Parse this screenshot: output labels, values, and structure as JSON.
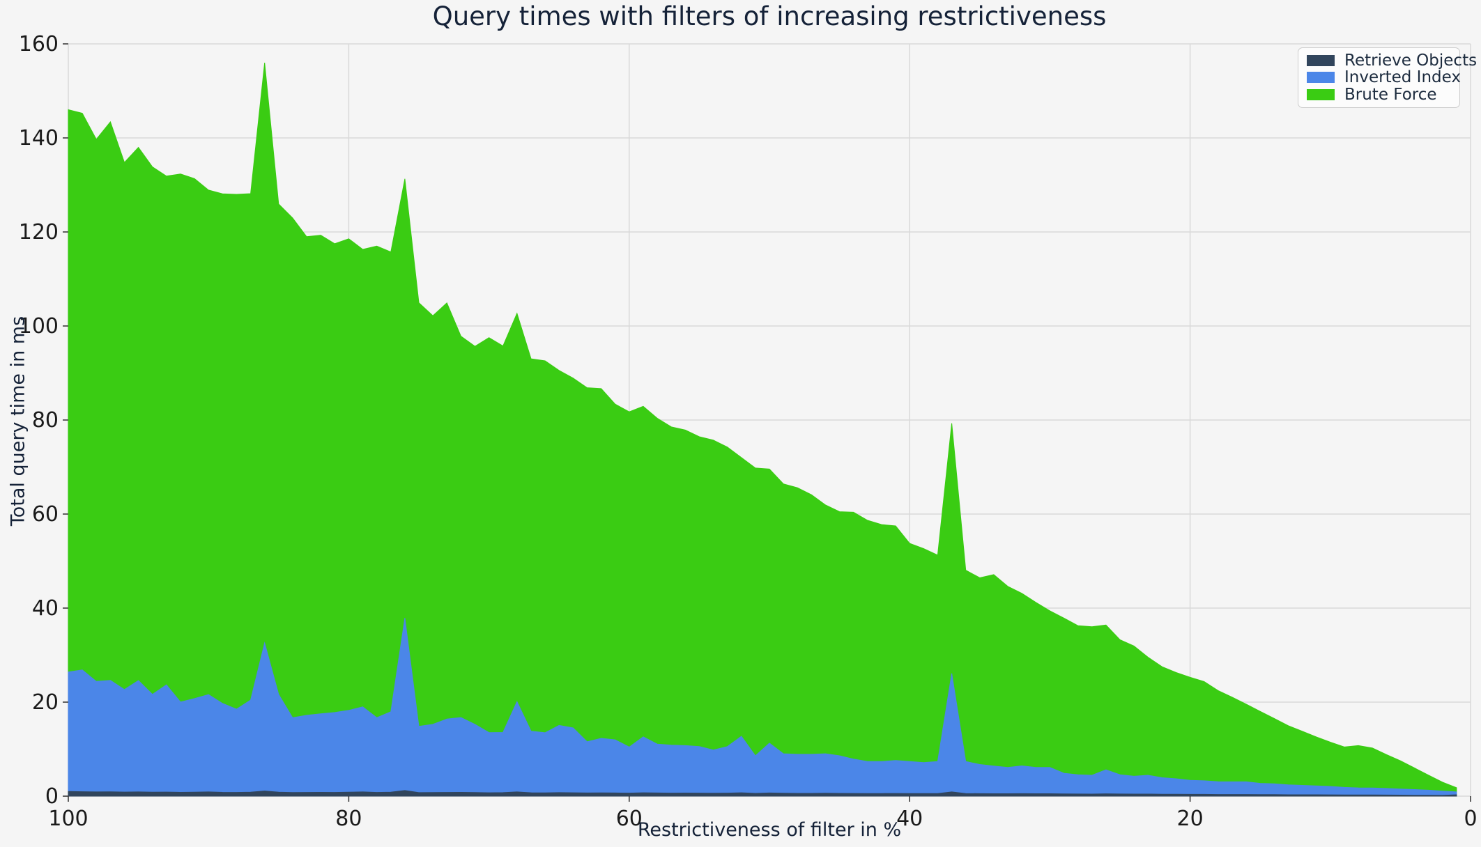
{
  "title": "Query times with filters of increasing restrictiveness",
  "x_axis": {
    "label": "Restrictiveness of filter in %",
    "tick_labels": [
      "100",
      "80",
      "60",
      "40",
      "20",
      "0"
    ],
    "tick_values": [
      100,
      80,
      60,
      40,
      20,
      0
    ]
  },
  "y_axis": {
    "label": "Total query time in ms",
    "tick_labels": [
      "0",
      "20",
      "40",
      "60",
      "80",
      "100",
      "120",
      "140",
      "160"
    ],
    "tick_values": [
      0,
      20,
      40,
      60,
      80,
      100,
      120,
      140,
      160
    ]
  },
  "legend": {
    "entries": [
      {
        "label": "Retrieve Objects",
        "color": "#31455c"
      },
      {
        "label": "Inverted Index",
        "color": "#4b86e8"
      },
      {
        "label": "Brute Force",
        "color": "#3acc13"
      }
    ]
  },
  "colors": {
    "background": "#f5f5f5",
    "grid": "#d9d9d9",
    "tick_mark": "#3a3a3a",
    "tick_text": "#1a1a1a",
    "label_text": "#152238",
    "legend_background": "#fcfcfc",
    "legend_border": "#cccccc"
  },
  "chart_data": {
    "type": "area",
    "stacked": true,
    "title": "Query times with filters of increasing restrictiveness",
    "xlabel": "Restrictiveness of filter in %",
    "ylabel": "Total query time in ms",
    "xlim": [
      100,
      0
    ],
    "ylim": [
      0,
      160
    ],
    "x_reversed": true,
    "grid": true,
    "legend_position": "upper right",
    "x": [
      100,
      99,
      98,
      97,
      96,
      95,
      94,
      93,
      92,
      91,
      90,
      89,
      88,
      87,
      86,
      85,
      84,
      83,
      82,
      81,
      80,
      79,
      78,
      77,
      76,
      75,
      74,
      73,
      72,
      71,
      70,
      69,
      68,
      67,
      66,
      65,
      64,
      63,
      62,
      61,
      60,
      59,
      58,
      57,
      56,
      55,
      54,
      53,
      52,
      51,
      50,
      49,
      48,
      47,
      46,
      45,
      44,
      43,
      42,
      41,
      40,
      39,
      38,
      37,
      36,
      35,
      34,
      33,
      32,
      31,
      30,
      29,
      28,
      27,
      26,
      25,
      24,
      23,
      22,
      21,
      20,
      19,
      18,
      17,
      16,
      15,
      14,
      13,
      12,
      11,
      10,
      9,
      8,
      7,
      6,
      5,
      4,
      3,
      2,
      1
    ],
    "series": [
      {
        "name": "Retrieve Objects",
        "color": "#31455c",
        "values": [
          1.0,
          0.95,
          0.9,
          0.92,
          0.88,
          0.9,
          0.85,
          0.88,
          0.82,
          0.85,
          0.9,
          0.82,
          0.8,
          0.85,
          1.1,
          0.85,
          0.78,
          0.8,
          0.82,
          0.8,
          0.85,
          0.9,
          0.8,
          0.85,
          1.2,
          0.75,
          0.78,
          0.8,
          0.82,
          0.78,
          0.72,
          0.75,
          0.9,
          0.72,
          0.7,
          0.75,
          0.72,
          0.68,
          0.7,
          0.68,
          0.65,
          0.72,
          0.68,
          0.65,
          0.66,
          0.65,
          0.62,
          0.65,
          0.72,
          0.6,
          0.68,
          0.62,
          0.6,
          0.6,
          0.62,
          0.6,
          0.58,
          0.56,
          0.56,
          0.58,
          0.56,
          0.55,
          0.56,
          0.9,
          0.56,
          0.54,
          0.52,
          0.52,
          0.54,
          0.52,
          0.52,
          0.48,
          0.46,
          0.45,
          0.5,
          0.46,
          0.44,
          0.45,
          0.42,
          0.4,
          0.38,
          0.38,
          0.36,
          0.35,
          0.35,
          0.33,
          0.32,
          0.3,
          0.3,
          0.3,
          0.28,
          0.26,
          0.26,
          0.25,
          0.24,
          0.22,
          0.2,
          0.18,
          0.16,
          0.3
        ]
      },
      {
        "name": "Inverted Index",
        "color": "#4b86e8",
        "values": [
          25.4,
          25.9,
          23.5,
          23.7,
          21.8,
          23.7,
          20.8,
          22.8,
          19.2,
          19.9,
          20.7,
          18.9,
          17.7,
          19.6,
          31.5,
          20.8,
          15.9,
          16.4,
          16.7,
          17.0,
          17.4,
          18.1,
          15.9,
          17.1,
          36.7,
          14.1,
          14.5,
          15.6,
          15.9,
          14.5,
          12.8,
          12.8,
          19.2,
          13.1,
          12.8,
          14.3,
          13.8,
          10.9,
          11.6,
          11.3,
          9.8,
          11.9,
          10.4,
          10.2,
          10.1,
          9.9,
          9.2,
          9.9,
          12.0,
          8.0,
          10.6,
          8.4,
          8.3,
          8.3,
          8.4,
          8.0,
          7.3,
          6.8,
          6.8,
          7.0,
          6.8,
          6.6,
          6.8,
          25.2,
          6.8,
          6.2,
          5.9,
          5.6,
          5.9,
          5.6,
          5.6,
          4.4,
          4.1,
          4.0,
          5.1,
          4.1,
          3.8,
          4.0,
          3.5,
          3.3,
          3.0,
          2.9,
          2.7,
          2.7,
          2.7,
          2.4,
          2.3,
          2.1,
          2.0,
          1.9,
          1.8,
          1.6,
          1.5,
          1.5,
          1.4,
          1.3,
          1.2,
          1.1,
          0.9,
          0.6
        ]
      },
      {
        "name": "Brute Force",
        "color": "#3acc13",
        "values": [
          119.6,
          118.4,
          115.3,
          118.8,
          112.1,
          113.4,
          112.2,
          108.2,
          112.3,
          110.6,
          107.3,
          108.4,
          109.5,
          107.7,
          123.4,
          104.3,
          106.3,
          101.8,
          101.8,
          99.7,
          100.3,
          97.3,
          100.3,
          97.8,
          93.4,
          90.1,
          86.9,
          88.5,
          81.1,
          80.4,
          84.0,
          82.2,
          82.6,
          79.2,
          79.1,
          75.5,
          74.4,
          75.3,
          74.4,
          71.4,
          71.3,
          70.3,
          69.3,
          67.7,
          67.1,
          65.9,
          65.9,
          63.7,
          59.3,
          61.2,
          58.3,
          57.4,
          56.7,
          55.2,
          52.9,
          51.9,
          52.5,
          51.3,
          50.4,
          49.9,
          46.4,
          45.5,
          43.9,
          53.2,
          40.7,
          39.7,
          40.7,
          38.5,
          36.7,
          35.1,
          33.3,
          33.0,
          31.7,
          31.6,
          30.8,
          28.7,
          27.7,
          25.1,
          23.6,
          22.6,
          21.9,
          21.1,
          19.4,
          18.0,
          16.5,
          15.3,
          13.9,
          12.6,
          11.5,
          10.4,
          9.4,
          8.6,
          9.0,
          8.5,
          7.2,
          6.0,
          4.6,
          3.2,
          1.9,
          0.9
        ]
      }
    ]
  }
}
